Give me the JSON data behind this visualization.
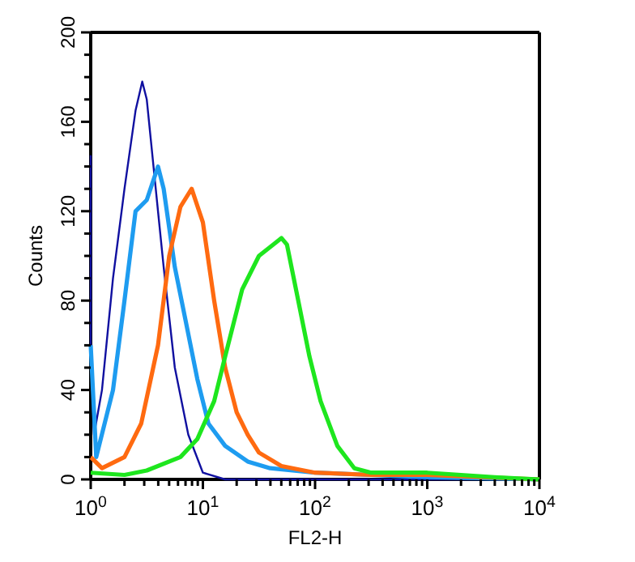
{
  "chart_data": {
    "type": "line",
    "xlabel": "FL2-H",
    "ylabel": "Counts",
    "log": "x",
    "xlim": [
      1,
      10000
    ],
    "ylim": [
      0,
      200
    ],
    "xticks": [
      {
        "value": 1,
        "label": "10$^{0}$"
      },
      {
        "value": 2,
        "label": null
      },
      {
        "value": 3,
        "label": null
      },
      {
        "value": 4,
        "label": null
      },
      {
        "value": 5,
        "label": null
      },
      {
        "value": 6,
        "label": null
      },
      {
        "value": 7,
        "label": null
      },
      {
        "value": 8,
        "label": null
      },
      {
        "value": 9,
        "label": null
      },
      {
        "value": 10,
        "label": "10$^{1}$"
      },
      {
        "value": 20,
        "label": null
      },
      {
        "value": 30,
        "label": null
      },
      {
        "value": 40,
        "label": null
      },
      {
        "value": 50,
        "label": null
      },
      {
        "value": 60,
        "label": null
      },
      {
        "value": 70,
        "label": null
      },
      {
        "value": 80,
        "label": null
      },
      {
        "value": 90,
        "label": null
      },
      {
        "value": 100,
        "label": "10$^{2}$"
      },
      {
        "value": 200,
        "label": null
      },
      {
        "value": 300,
        "label": null
      },
      {
        "value": 400,
        "label": null
      },
      {
        "value": 500,
        "label": null
      },
      {
        "value": 600,
        "label": null
      },
      {
        "value": 700,
        "label": null
      },
      {
        "value": 800,
        "label": null
      },
      {
        "value": 900,
        "label": null
      },
      {
        "value": 1000,
        "label": "10$^{3}$"
      },
      {
        "value": 2000,
        "label": null
      },
      {
        "value": 3000,
        "label": null
      },
      {
        "value": 4000,
        "label": null
      },
      {
        "value": 5000,
        "label": null
      },
      {
        "value": 6000,
        "label": null
      },
      {
        "value": 7000,
        "label": null
      },
      {
        "value": 8000,
        "label": null
      },
      {
        "value": 9000,
        "label": null
      },
      {
        "value": 10000,
        "label": "10$^{4}$"
      }
    ],
    "yticks": [
      0,
      {
        "value": 10,
        "label": null
      },
      {
        "value": 20,
        "label": null
      },
      {
        "value": 30,
        "label": null
      },
      40,
      {
        "value": 50,
        "label": null
      },
      {
        "value": 60,
        "label": null
      },
      {
        "value": 70,
        "label": null
      },
      80,
      {
        "value": 90,
        "label": null
      },
      {
        "value": 100,
        "label": null
      },
      {
        "value": 110,
        "label": null
      },
      120,
      {
        "value": 130,
        "label": null
      },
      {
        "value": 140,
        "label": null
      },
      {
        "value": 150,
        "label": null
      },
      160,
      {
        "value": 170,
        "label": null
      },
      {
        "value": 180,
        "label": null
      },
      {
        "value": 190,
        "label": null
      },
      200
    ],
    "grid": false,
    "series": [
      {
        "color": "#1010a0",
        "x": [
          1,
          1,
          1.07,
          1.26,
          1.58,
          2,
          2.51,
          2.88,
          3.16,
          3.98,
          4.47,
          5.62,
          7.41,
          10,
          15.8,
          100,
          1000,
          10000
        ],
        "values": [
          145,
          60,
          20,
          40,
          90,
          130,
          165,
          178,
          170,
          120,
          95,
          50,
          20,
          3,
          0,
          0,
          0,
          0
        ]
      },
      {
        "color": "#1e9cf0",
        "x": [
          1,
          1.12,
          1.58,
          2,
          2.51,
          3.16,
          3.98,
          4.47,
          5.62,
          7.08,
          8.91,
          11.2,
          15.8,
          25.1,
          39.8,
          100,
          316,
          1000,
          10000
        ],
        "values": [
          60,
          10,
          40,
          80,
          120,
          125,
          140,
          130,
          95,
          70,
          45,
          25,
          15,
          8,
          5,
          3,
          2,
          1,
          0
        ]
      },
      {
        "color": "#ff6a10",
        "x": [
          1,
          1.26,
          2,
          2.82,
          3.98,
          5.01,
          6.31,
          7.94,
          10,
          12.6,
          15.8,
          20,
          25.1,
          31.6,
          50.1,
          100,
          316,
          1000,
          3162,
          10000
        ],
        "values": [
          10,
          5,
          10,
          25,
          60,
          100,
          122,
          130,
          115,
          80,
          50,
          30,
          20,
          12,
          6,
          3,
          2,
          2,
          1,
          0
        ]
      },
      {
        "color": "#1ee61e",
        "x": [
          1,
          2,
          3.16,
          6.31,
          8.91,
          12.6,
          15.8,
          22.4,
          31.6,
          44.7,
          50.1,
          56.2,
          70.8,
          89.1,
          112,
          158,
          224,
          316,
          1000,
          1995,
          3981,
          10000
        ],
        "values": [
          3,
          2,
          4,
          10,
          18,
          35,
          55,
          85,
          100,
          106,
          108,
          105,
          80,
          55,
          35,
          15,
          5,
          3,
          3,
          2,
          1,
          0
        ]
      }
    ]
  }
}
